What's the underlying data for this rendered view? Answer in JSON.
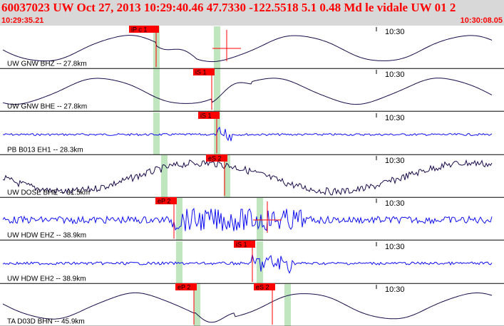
{
  "header": {
    "title": "60037023 UW Oct 27, 2013 10:29:40.46   47.7330 -122.5518  5.1 0.48 Md le vidale UW 01   2",
    "start_time": "10:29:35.21",
    "end_time": "10:30:08.05"
  },
  "time_marker_label": "10:30",
  "colors": {
    "pick_red": "#ff0000",
    "window_green": "#bfe6bf",
    "trace_blue": "#1010ee",
    "trace_dark": "#1a0a4a",
    "header_bg": "#d8d8d8"
  },
  "traces": [
    {
      "label": "UW GNW BHZ -- 27.8km",
      "color_key": "trace_dark",
      "kind": "smooth",
      "picks": [
        {
          "text": "iP c 1",
          "t": 0.31
        }
      ],
      "green_windows": [
        0.31,
        0.43
      ],
      "pick_markers": [
        0.45
      ]
    },
    {
      "label": "UW GNW BHE -- 27.8km",
      "color_key": "trace_dark",
      "kind": "smooth",
      "picks": [
        {
          "text": "iS 1",
          "t": 0.42
        }
      ],
      "green_windows": [
        0.31,
        0.43
      ],
      "pick_markers": []
    },
    {
      "label": "PB B013 EH1 -- 28.3km",
      "color_key": "trace_blue",
      "kind": "flat",
      "picks": [
        {
          "text": "iS 1",
          "t": 0.43
        }
      ],
      "green_windows": [
        0.31,
        0.43
      ],
      "pick_markers": []
    },
    {
      "label": "UW DOSE BHE -- 31.5km",
      "color_key": "trace_dark",
      "kind": "noisy",
      "picks": [
        {
          "text": "eS 2",
          "t": 0.445
        }
      ],
      "green_windows": [
        0.325,
        0.45
      ],
      "pick_markers": []
    },
    {
      "label": "UW HDW EHZ -- 38.9km",
      "color_key": "trace_blue",
      "kind": "burst",
      "picks": [
        {
          "text": "eP 2",
          "t": 0.345
        }
      ],
      "green_windows": [
        0.355,
        0.515
      ],
      "pick_markers": [
        0.53
      ]
    },
    {
      "label": "UW HDW EH2 -- 38.9km",
      "color_key": "trace_blue",
      "kind": "onset",
      "picks": [
        {
          "text": "iS 1",
          "t": 0.5
        }
      ],
      "green_windows": [
        0.355,
        0.515
      ],
      "pick_markers": []
    },
    {
      "label": "TA D03D BHN -- 45.9km",
      "color_key": "trace_dark",
      "kind": "smooth",
      "picks": [
        {
          "text": "eP 2",
          "t": 0.385
        },
        {
          "text": "eS 2",
          "t": 0.54
        }
      ],
      "green_windows": [
        0.39,
        0.57
      ],
      "pick_markers": []
    }
  ]
}
